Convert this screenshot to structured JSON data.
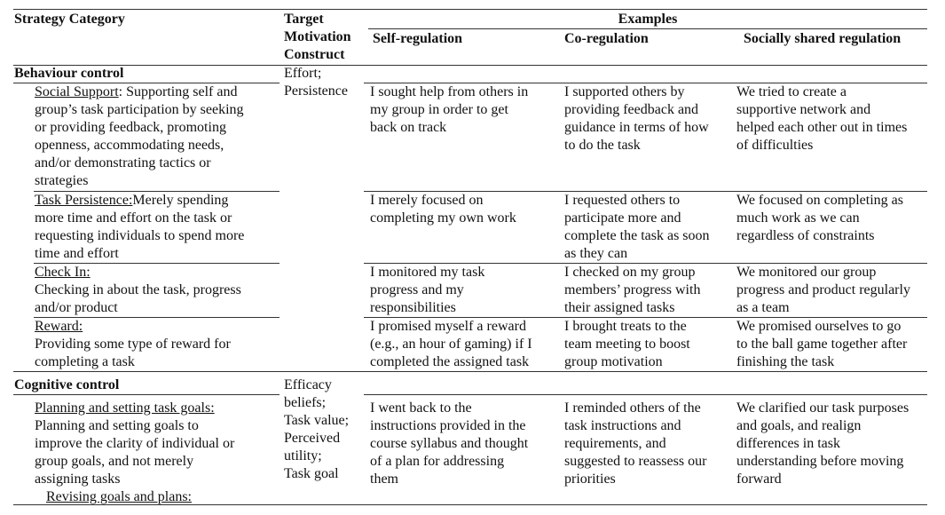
{
  "table": {
    "header": {
      "strategy": "Strategy Category",
      "target": [
        "Target",
        "Motivation",
        "Construct"
      ],
      "examples": "Examples",
      "self": "Self-regulation",
      "co": "Co-regulation",
      "shared": "Socially shared regulation"
    },
    "sections": [
      {
        "title": "Behaviour control",
        "target": [
          "Effort;",
          "Persistence"
        ],
        "rows": [
          {
            "name": "Social Support",
            "name_rest": ": Supporting self and",
            "desc": [
              "group’s task participation by seeking",
              "or providing feedback, promoting",
              "openness, accommodating needs,",
              "and/or demonstrating tactics or",
              "strategies"
            ],
            "self": [
              "I sought help from others in",
              "my group in order to get",
              "back on track"
            ],
            "co": [
              "I supported others by",
              "providing feedback and",
              "guidance in terms of how",
              "to do the task"
            ],
            "shared": [
              "We tried to create a",
              "supportive network and",
              "helped each other out in times",
              "of difficulties"
            ]
          },
          {
            "name": "Task Persistence:",
            "name_rest": " Merely spending",
            "desc": [
              "more time and effort on the task or",
              "requesting individuals to spend more",
              "time and effort"
            ],
            "self": [
              "I merely focused on",
              "completing my own work"
            ],
            "co": [
              "I requested others to",
              "participate more and",
              "complete the task as soon",
              "as they can"
            ],
            "shared": [
              "We focused on completing as",
              "much work as we can",
              "regardless of constraints"
            ]
          },
          {
            "name": "Check In:",
            "desc": [
              "Checking in about the task, progress",
              "and/or product"
            ],
            "self": [
              "I monitored my task",
              "progress and my",
              "responsibilities"
            ],
            "co": [
              "I checked on my group",
              "members’ progress with",
              "their assigned tasks"
            ],
            "shared": [
              "We monitored our group",
              "progress and product regularly",
              "as a team"
            ]
          },
          {
            "name": "Reward:",
            "desc": [
              "Providing some type of reward for",
              "completing a task"
            ],
            "self": [
              "I promised myself a reward",
              "(e.g., an hour of gaming) if I",
              "completed the assigned task"
            ],
            "co": [
              "I brought treats to the",
              "team meeting to boost",
              "group motivation"
            ],
            "shared": [
              "We promised ourselves to go",
              "to the ball game together after",
              "finishing the task"
            ]
          }
        ]
      },
      {
        "title": "Cognitive control",
        "target": [
          "Efficacy",
          "beliefs;",
          "Task value;",
          "Perceived",
          "utility;",
          "Task goal"
        ],
        "rows": [
          {
            "name": "Planning and setting task goals:",
            "desc": [
              "Planning and setting goals to",
              "improve the clarity of individual or",
              "group goals, and not merely",
              "assigning tasks"
            ],
            "self": [
              "I went back to the",
              "instructions provided in the",
              "course syllabus and thought",
              "of a plan for addressing",
              "them"
            ],
            "co": [
              "I reminded others of the",
              "task instructions and",
              "requirements, and",
              "suggested to reassess our",
              "priorities"
            ],
            "shared": [
              "We clarified our task purposes",
              "and goals, and realign",
              "differences in task",
              "understanding before moving",
              "forward"
            ]
          },
          {
            "name": "Revising goals and plans:"
          }
        ]
      }
    ]
  }
}
